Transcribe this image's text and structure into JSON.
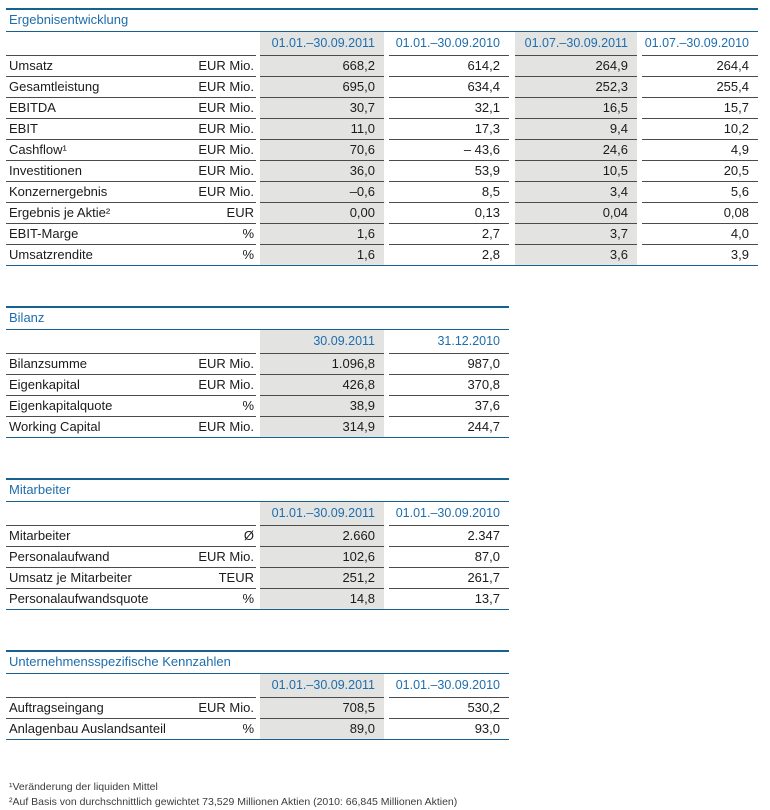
{
  "colors": {
    "blue_text": "#1e6dad",
    "blue_line": "#16618f",
    "row_line": "#4b4b4b",
    "shaded_col": "#e3e3e2",
    "ink": "#1b1b1b",
    "footnote_ink": "#3c3c3c"
  },
  "tables": [
    {
      "title": "Ergebnisentwicklung",
      "headers": [
        "01.01.–30.09.2011",
        "01.01.–30.09.2010",
        "01.07.–30.09.2011",
        "01.07.–30.09.2010"
      ],
      "rows": [
        {
          "label": "Umsatz",
          "unit": "EUR Mio.",
          "values": [
            "668,2",
            "614,2",
            "264,9",
            "264,4"
          ]
        },
        {
          "label": "Gesamtleistung",
          "unit": "EUR Mio.",
          "values": [
            "695,0",
            "634,4",
            "252,3",
            "255,4"
          ]
        },
        {
          "label": "EBITDA",
          "unit": "EUR Mio.",
          "values": [
            "30,7",
            "32,1",
            "16,5",
            "15,7"
          ]
        },
        {
          "label": "EBIT",
          "unit": "EUR Mio.",
          "values": [
            "11,0",
            "17,3",
            "9,4",
            "10,2"
          ]
        },
        {
          "label": "Cashflow¹",
          "unit": "EUR Mio.",
          "values": [
            "70,6",
            "– 43,6",
            "24,6",
            "4,9"
          ]
        },
        {
          "label": "Investitionen",
          "unit": "EUR Mio.",
          "values": [
            "36,0",
            "53,9",
            "10,5",
            "20,5"
          ]
        },
        {
          "label": "Konzernergebnis",
          "unit": "EUR Mio.",
          "values": [
            "–0,6",
            "8,5",
            "3,4",
            "5,6"
          ]
        },
        {
          "label": "Ergebnis je Aktie²",
          "unit": "EUR",
          "values": [
            "0,00",
            "0,13",
            "0,04",
            "0,08"
          ]
        },
        {
          "label": "EBIT-Marge",
          "unit": "%",
          "values": [
            "1,6",
            "2,7",
            "3,7",
            "4,0"
          ]
        },
        {
          "label": "Umsatzrendite",
          "unit": "%",
          "values": [
            "1,6",
            "2,8",
            "3,6",
            "3,9"
          ]
        }
      ]
    },
    {
      "title": "Bilanz",
      "headers": [
        "30.09.2011",
        "31.12.2010"
      ],
      "rows": [
        {
          "label": "Bilanzsumme",
          "unit": "EUR Mio.",
          "values": [
            "1.096,8",
            "987,0"
          ]
        },
        {
          "label": "Eigenkapital",
          "unit": "EUR Mio.",
          "values": [
            "426,8",
            "370,8"
          ]
        },
        {
          "label": "Eigenkapitalquote",
          "unit": "%",
          "values": [
            "38,9",
            "37,6"
          ]
        },
        {
          "label": "Working Capital",
          "unit": "EUR Mio.",
          "values": [
            "314,9",
            "244,7"
          ]
        }
      ]
    },
    {
      "title": "Mitarbeiter",
      "headers": [
        "01.01.–30.09.2011",
        "01.01.–30.09.2010"
      ],
      "rows": [
        {
          "label": "Mitarbeiter",
          "unit": "Ø",
          "values": [
            "2.660",
            "2.347"
          ]
        },
        {
          "label": "Personalaufwand",
          "unit": "EUR Mio.",
          "values": [
            "102,6",
            "87,0"
          ]
        },
        {
          "label": "Umsatz je Mitarbeiter",
          "unit": "TEUR",
          "values": [
            "251,2",
            "261,7"
          ]
        },
        {
          "label": "Personalaufwandsquote",
          "unit": "%",
          "values": [
            "14,8",
            "13,7"
          ]
        }
      ]
    },
    {
      "title": "Unternehmensspezifische Kennzahlen",
      "headers": [
        "01.01.–30.09.2011",
        "01.01.–30.09.2010"
      ],
      "rows": [
        {
          "label": "Auftragseingang",
          "unit": "EUR Mio.",
          "values": [
            "708,5",
            "530,2"
          ]
        },
        {
          "label": "Anlagenbau Auslandsanteil",
          "unit": "%",
          "values": [
            "89,0",
            "93,0"
          ]
        }
      ]
    }
  ],
  "footnotes": [
    "¹Veränderung der liquiden Mittel",
    "²Auf Basis von durchschnittlich gewichtet 73,529 Millionen Aktien (2010: 66,845 Millionen Aktien)"
  ]
}
